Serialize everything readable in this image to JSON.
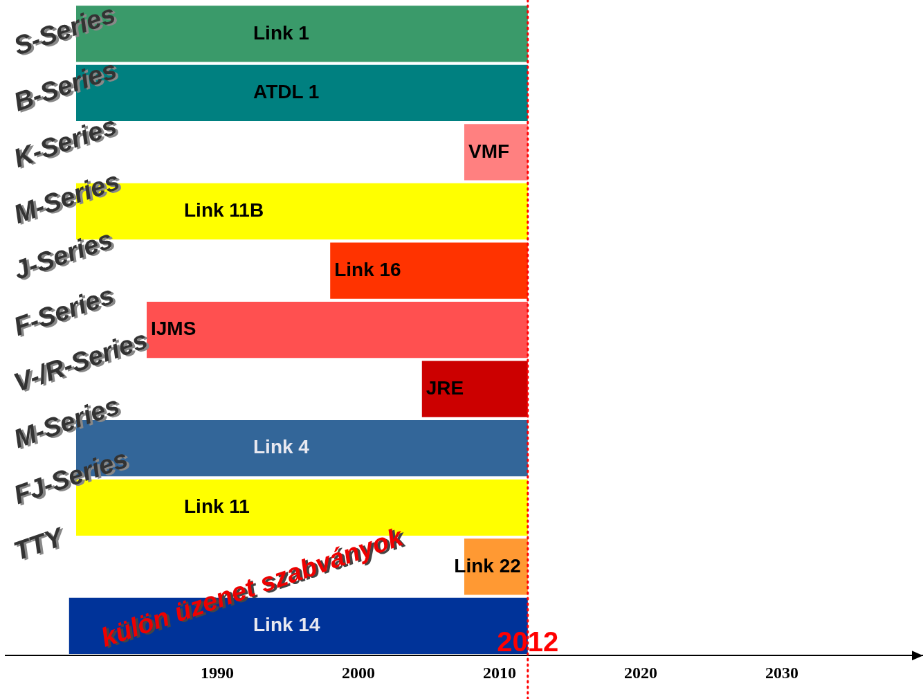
{
  "chart_data": {
    "type": "bar",
    "orientation": "horizontal",
    "categories": [
      "Link 1",
      "ATDL 1",
      "VMF",
      "Link 11B",
      "Link 16",
      "IJMS",
      "JRE",
      "Link 4",
      "Link 11",
      "Link 22",
      "Link 14"
    ],
    "base": [
      1980,
      1980,
      2007.5,
      1980,
      1998,
      1985,
      2004.5,
      1980,
      1980,
      2007.5,
      1979.5
    ],
    "values": [
      32,
      32,
      4.5,
      32,
      14,
      27,
      7.5,
      32,
      32,
      4.5,
      32.5
    ],
    "colors": [
      "#3a9a6a",
      "#008080",
      "#ff8080",
      "#ffff00",
      "#ff3300",
      "#ff5050",
      "#cc0000",
      "#336699",
      "#ffff00",
      "#ff9933",
      "#003399"
    ],
    "xlim": [
      1975,
      2040
    ],
    "xticks": [
      1990,
      2000,
      2010,
      2020,
      2030
    ],
    "ref_lines": [
      {
        "axis": "x",
        "value": 2012,
        "label": "2012",
        "color": "#ff0000",
        "line_style": "dotted"
      }
    ],
    "annotations": [
      "S-Series",
      "B-Series",
      "K-Series",
      "M-Series",
      "J-Series",
      "F-Series",
      "V-/R-Series",
      "M-Series",
      "FJ-Series",
      "TTY",
      "külön üzenet szabványok"
    ],
    "tick_labels": "x",
    "grid": false,
    "legend": false
  }
}
